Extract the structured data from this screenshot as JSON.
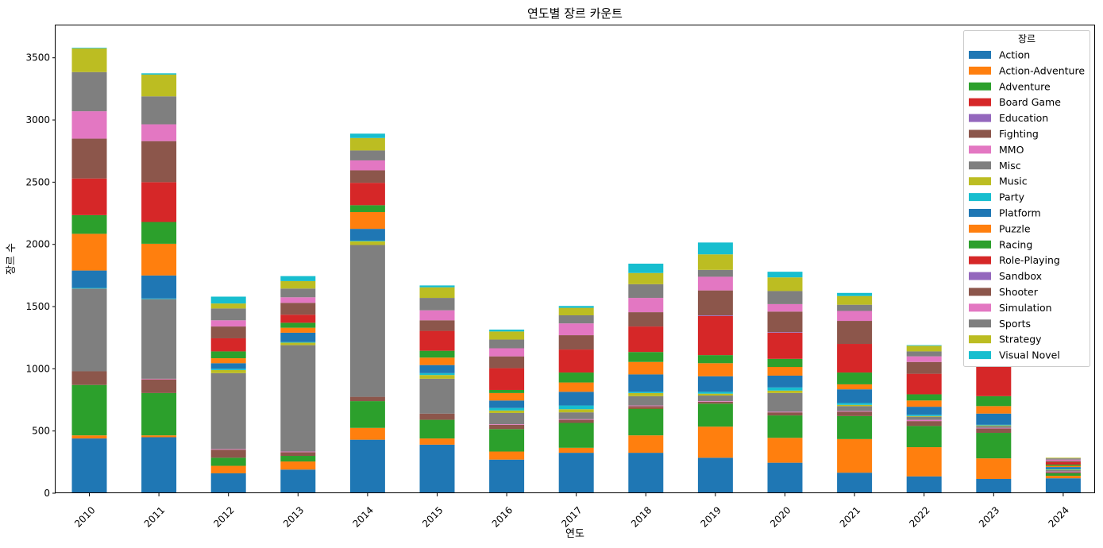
{
  "chart_data": {
    "type": "bar",
    "stacked": true,
    "title": "연도별 장르 카운트",
    "xlabel": "연도",
    "ylabel": "장르 수",
    "ylim": [
      0,
      3760
    ],
    "yticks": [
      0,
      500,
      1000,
      1500,
      2000,
      2500,
      3000,
      3500
    ],
    "grid": false,
    "legend_title": "장르",
    "legend_position": "top-right",
    "categories": [
      "2010",
      "2011",
      "2012",
      "2013",
      "2014",
      "2015",
      "2016",
      "2017",
      "2018",
      "2019",
      "2020",
      "2021",
      "2022",
      "2023",
      "2024"
    ],
    "series": [
      {
        "name": "Action",
        "color": "#1f77b4",
        "values": [
          440,
          450,
          160,
          190,
          430,
          390,
          270,
          325,
          325,
          285,
          245,
          165,
          135,
          115,
          120
        ]
      },
      {
        "name": "Action-Adventure",
        "color": "#ff7f0e",
        "values": [
          25,
          15,
          60,
          65,
          95,
          50,
          65,
          40,
          140,
          250,
          200,
          270,
          235,
          165,
          20
        ]
      },
      {
        "name": "Adventure",
        "color": "#2ca02c",
        "values": [
          405,
          340,
          65,
          45,
          215,
          150,
          180,
          200,
          215,
          185,
          180,
          185,
          170,
          205,
          20
        ]
      },
      {
        "name": "Board Game",
        "color": "#d62728",
        "values": [
          0,
          0,
          0,
          0,
          0,
          0,
          0,
          0,
          5,
          0,
          0,
          0,
          0,
          0,
          0
        ]
      },
      {
        "name": "Education",
        "color": "#9467bd",
        "values": [
          0,
          0,
          0,
          0,
          0,
          0,
          0,
          0,
          0,
          0,
          0,
          0,
          0,
          0,
          0
        ]
      },
      {
        "name": "Fighting",
        "color": "#8c564b",
        "values": [
          110,
          110,
          65,
          30,
          35,
          50,
          35,
          25,
          15,
          15,
          25,
          35,
          40,
          35,
          10
        ]
      },
      {
        "name": "MMO",
        "color": "#e377c2",
        "values": [
          0,
          5,
          5,
          5,
          0,
          0,
          5,
          5,
          5,
          5,
          5,
          5,
          10,
          5,
          5
        ]
      },
      {
        "name": "Misc",
        "color": "#7f7f7f",
        "values": [
          665,
          640,
          610,
          855,
          1220,
          280,
          90,
          55,
          75,
          45,
          150,
          40,
          25,
          15,
          10
        ]
      },
      {
        "name": "Music",
        "color": "#bcbd22",
        "values": [
          0,
          0,
          25,
          20,
          30,
          30,
          20,
          25,
          25,
          15,
          20,
          10,
          5,
          5,
          5
        ]
      },
      {
        "name": "Party",
        "color": "#17becf",
        "values": [
          5,
          5,
          10,
          5,
          5,
          15,
          20,
          30,
          10,
          15,
          25,
          15,
          10,
          5,
          5
        ]
      },
      {
        "name": "Platform",
        "color": "#1f77b4",
        "values": [
          140,
          185,
          45,
          75,
          95,
          65,
          60,
          110,
          140,
          125,
          95,
          110,
          65,
          90,
          15
        ]
      },
      {
        "name": "Puzzle",
        "color": "#ff7f0e",
        "values": [
          295,
          255,
          40,
          40,
          135,
          60,
          60,
          75,
          100,
          105,
          70,
          40,
          50,
          60,
          10
        ]
      },
      {
        "name": "Racing",
        "color": "#2ca02c",
        "values": [
          150,
          175,
          55,
          40,
          55,
          55,
          25,
          80,
          80,
          65,
          65,
          95,
          50,
          80,
          10
        ]
      },
      {
        "name": "Role-Playing",
        "color": "#d62728",
        "values": [
          295,
          320,
          105,
          65,
          180,
          160,
          175,
          185,
          205,
          315,
          210,
          230,
          165,
          240,
          20
        ]
      },
      {
        "name": "Sandbox",
        "color": "#9467bd",
        "values": [
          0,
          0,
          0,
          0,
          0,
          0,
          0,
          0,
          0,
          5,
          5,
          0,
          0,
          0,
          0
        ]
      },
      {
        "name": "Shooter",
        "color": "#8c564b",
        "values": [
          320,
          330,
          95,
          95,
          100,
          85,
          95,
          115,
          115,
          200,
          165,
          185,
          95,
          0,
          10
        ]
      },
      {
        "name": "Simulation",
        "color": "#e377c2",
        "values": [
          220,
          135,
          50,
          45,
          80,
          80,
          65,
          95,
          115,
          110,
          60,
          80,
          45,
          0,
          10
        ]
      },
      {
        "name": "Sports",
        "color": "#7f7f7f",
        "values": [
          315,
          225,
          95,
          70,
          80,
          100,
          70,
          65,
          110,
          55,
          105,
          50,
          40,
          0,
          10
        ]
      },
      {
        "name": "Strategy",
        "color": "#bcbd22",
        "values": [
          190,
          175,
          40,
          60,
          100,
          85,
          65,
          60,
          90,
          125,
          110,
          70,
          45,
          0,
          5
        ]
      },
      {
        "name": "Visual Novel",
        "color": "#17becf",
        "values": [
          5,
          10,
          55,
          40,
          35,
          15,
          15,
          15,
          75,
          95,
          45,
          25,
          5,
          0,
          0
        ]
      }
    ]
  }
}
